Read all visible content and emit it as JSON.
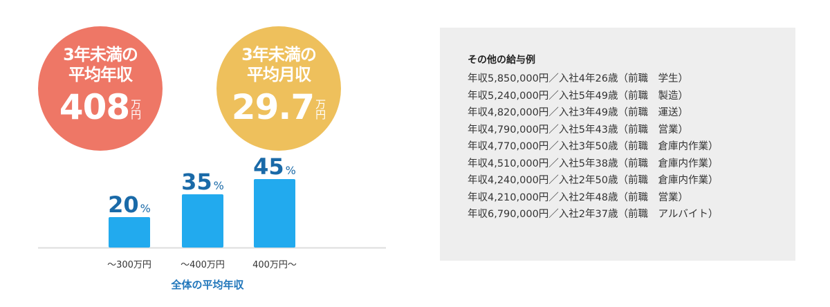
{
  "circles": {
    "annual": {
      "line1": "3年未満の",
      "line2": "平均年収",
      "value": "408",
      "unit_top": "万",
      "unit_bottom": "円",
      "color": "#ee7766"
    },
    "monthly": {
      "line1": "3年未満の",
      "line2": "平均月収",
      "value": "29.7",
      "unit_top": "万",
      "unit_bottom": "円",
      "color": "#eec05c"
    }
  },
  "chart_data": {
    "type": "bar",
    "categories": [
      "～300万円",
      "～400万円",
      "400万円～"
    ],
    "values": [
      20,
      35,
      45
    ],
    "value_suffix": "%",
    "xlabel": "全体の平均年収",
    "ylabel": "",
    "ylim": [
      0,
      45
    ],
    "grid": false,
    "bar_color": "#22aaee",
    "label_color": "#1a6aa8"
  },
  "examples": {
    "title": "その他の給与例",
    "items": [
      "年収5,850,000円／入社4年26歳（前職　学生）",
      "年収5,240,000円／入社5年49歳（前職　製造）",
      "年収4,820,000円／入社3年49歳（前職　運送）",
      "年収4,790,000円／入社5年43歳（前職　営業）",
      "年収4,770,000円／入社3年50歳（前職　倉庫内作業）",
      "年収4,510,000円／入社5年38歳（前職　倉庫内作業）",
      "年収4,240,000円／入社2年50歳（前職　倉庫内作業）",
      "年収4,210,000円／入社2年48歳（前職　営業）",
      "年収6,790,000円／入社2年37歳（前職　アルバイト）"
    ]
  }
}
